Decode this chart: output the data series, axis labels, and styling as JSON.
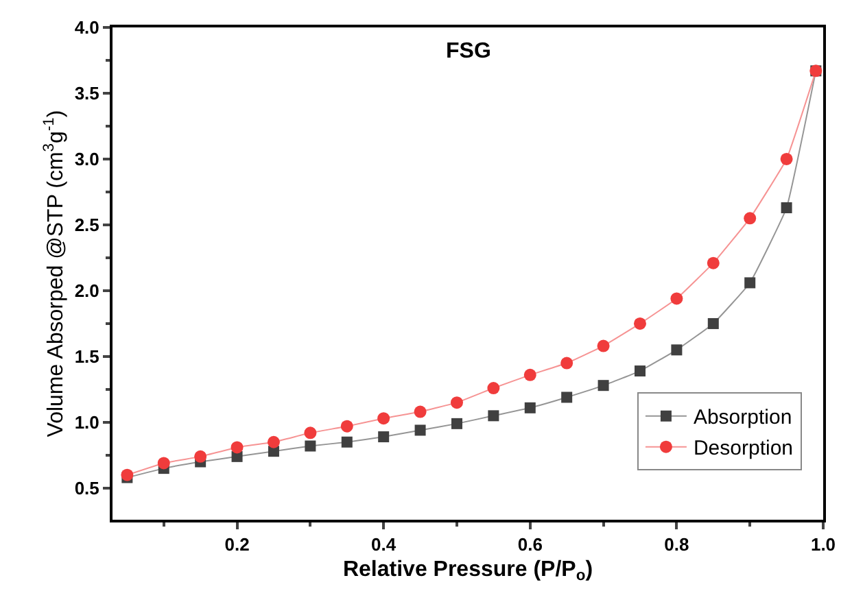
{
  "chart_data": {
    "type": "line",
    "title": "FSG",
    "xlabel": "Relative Pressure (P/P$_{o}$)",
    "ylabel": "Volume Absorped @STP (cm$^{3}$g$^{-1}$)",
    "x": [
      0.05,
      0.1,
      0.15,
      0.2,
      0.25,
      0.3,
      0.35,
      0.4,
      0.45,
      0.5,
      0.55,
      0.6,
      0.65,
      0.7,
      0.75,
      0.8,
      0.85,
      0.9,
      0.95,
      0.99
    ],
    "series": [
      {
        "name": "Absorption",
        "color": "#404040",
        "marker": "square",
        "values": [
          0.58,
          0.65,
          0.7,
          0.74,
          0.78,
          0.82,
          0.85,
          0.89,
          0.94,
          0.99,
          1.05,
          1.11,
          1.19,
          1.28,
          1.39,
          1.55,
          1.75,
          2.06,
          2.63,
          3.67
        ]
      },
      {
        "name": "Desorption",
        "color": "#f03c3c",
        "marker": "circle",
        "values": [
          0.6,
          0.69,
          0.74,
          0.81,
          0.85,
          0.92,
          0.97,
          1.03,
          1.08,
          1.15,
          1.26,
          1.36,
          1.45,
          1.58,
          1.75,
          1.94,
          2.21,
          2.55,
          3.0,
          3.67
        ]
      }
    ],
    "xlim": [
      0.03,
      1.0
    ],
    "ylim": [
      0.26,
      4.0
    ],
    "xticks": [
      0.2,
      0.4,
      0.6,
      0.8,
      {
        "value": 1,
        "label": "1.0"
      }
    ],
    "yticks": [
      0.5,
      {
        "value": 1,
        "label": "1.0"
      },
      1.5,
      {
        "value": 2,
        "label": "2.0"
      },
      2.5,
      {
        "value": 3,
        "label": "3.0"
      },
      3.5,
      {
        "value": 4,
        "label": "4.0"
      }
    ],
    "legend": "bottom right",
    "line_style": "solid"
  }
}
